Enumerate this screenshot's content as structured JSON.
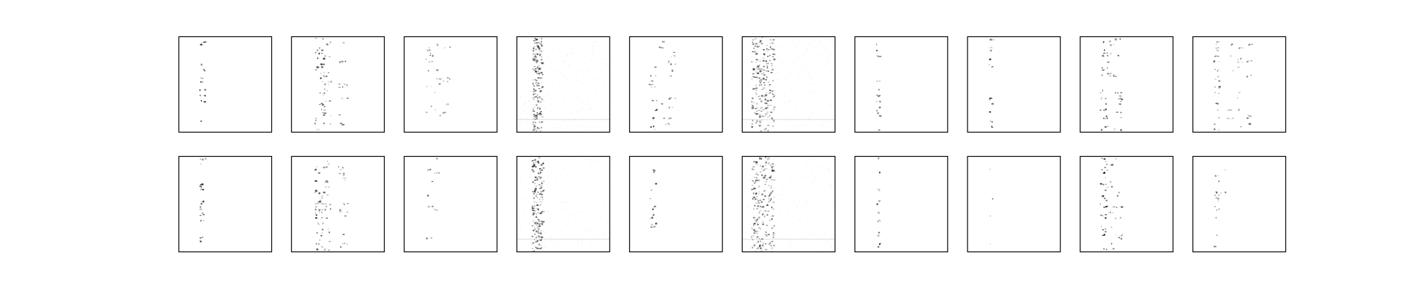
{
  "figure": {
    "rows": 2,
    "cols": 10,
    "background": "#ffffff",
    "frame_color": "#000000",
    "ink_color": "#000000"
  },
  "chart_data": {
    "type": "heatmap",
    "title": "",
    "xlabel": "",
    "ylabel": "",
    "axes_ticks": false,
    "grid": false,
    "legend": "none",
    "colormap": "gray_r",
    "panels": [
      {
        "row": 0,
        "col": 0,
        "pattern": "sparse-column",
        "columns": [
          0.25
        ],
        "spread": 0.03,
        "density": 0.35,
        "intensity": 0.85
      },
      {
        "row": 0,
        "col": 1,
        "pattern": "multi-column",
        "columns": [
          0.3,
          0.37,
          0.55
        ],
        "spread": 0.05,
        "density": 0.6,
        "intensity": 0.8
      },
      {
        "row": 0,
        "col": 2,
        "pattern": "multi-column",
        "columns": [
          0.27,
          0.35,
          0.45
        ],
        "spread": 0.04,
        "density": 0.35,
        "intensity": 0.7
      },
      {
        "row": 0,
        "col": 3,
        "pattern": "dense-column",
        "columns": [
          0.22
        ],
        "spread": 0.05,
        "density": 0.9,
        "intensity": 0.6
      },
      {
        "row": 0,
        "col": 4,
        "pattern": "multi-column",
        "columns": [
          0.25,
          0.35,
          0.45
        ],
        "spread": 0.04,
        "density": 0.45,
        "intensity": 0.85
      },
      {
        "row": 0,
        "col": 5,
        "pattern": "dense-column",
        "columns": [
          0.22
        ],
        "spread": 0.12,
        "density": 0.95,
        "intensity": 0.65
      },
      {
        "row": 0,
        "col": 6,
        "pattern": "sparse-column",
        "columns": [
          0.25
        ],
        "spread": 0.02,
        "density": 0.3,
        "intensity": 0.7
      },
      {
        "row": 0,
        "col": 7,
        "pattern": "sparse-column",
        "columns": [
          0.25
        ],
        "spread": 0.02,
        "density": 0.2,
        "intensity": 0.75
      },
      {
        "row": 0,
        "col": 8,
        "pattern": "multi-column",
        "columns": [
          0.25,
          0.32,
          0.4
        ],
        "spread": 0.04,
        "density": 0.5,
        "intensity": 0.9
      },
      {
        "row": 0,
        "col": 9,
        "pattern": "multi-column",
        "columns": [
          0.25,
          0.4,
          0.5,
          0.6
        ],
        "spread": 0.03,
        "density": 0.5,
        "intensity": 0.75
      },
      {
        "row": 1,
        "col": 0,
        "pattern": "sparse-column",
        "columns": [
          0.25
        ],
        "spread": 0.03,
        "density": 0.35,
        "intensity": 0.85
      },
      {
        "row": 1,
        "col": 1,
        "pattern": "multi-column",
        "columns": [
          0.3,
          0.37,
          0.55
        ],
        "spread": 0.05,
        "density": 0.6,
        "intensity": 0.8
      },
      {
        "row": 1,
        "col": 2,
        "pattern": "multi-column",
        "columns": [
          0.27,
          0.35
        ],
        "spread": 0.04,
        "density": 0.3,
        "intensity": 0.7
      },
      {
        "row": 1,
        "col": 3,
        "pattern": "dense-column",
        "columns": [
          0.22
        ],
        "spread": 0.06,
        "density": 0.9,
        "intensity": 0.65
      },
      {
        "row": 1,
        "col": 4,
        "pattern": "sparse-column",
        "columns": [
          0.25
        ],
        "spread": 0.03,
        "density": 0.4,
        "intensity": 0.85
      },
      {
        "row": 1,
        "col": 5,
        "pattern": "dense-column",
        "columns": [
          0.22
        ],
        "spread": 0.12,
        "density": 0.95,
        "intensity": 0.65
      },
      {
        "row": 1,
        "col": 6,
        "pattern": "sparse-column",
        "columns": [
          0.25
        ],
        "spread": 0.02,
        "density": 0.3,
        "intensity": 0.7
      },
      {
        "row": 1,
        "col": 7,
        "pattern": "sparse-column",
        "columns": [
          0.25
        ],
        "spread": 0.02,
        "density": 0.22,
        "intensity": 0.75
      },
      {
        "row": 1,
        "col": 8,
        "pattern": "multi-column",
        "columns": [
          0.25,
          0.32,
          0.4
        ],
        "spread": 0.04,
        "density": 0.5,
        "intensity": 0.9
      },
      {
        "row": 1,
        "col": 9,
        "pattern": "multi-column",
        "columns": [
          0.25,
          0.32
        ],
        "spread": 0.03,
        "density": 0.3,
        "intensity": 0.7
      }
    ]
  }
}
